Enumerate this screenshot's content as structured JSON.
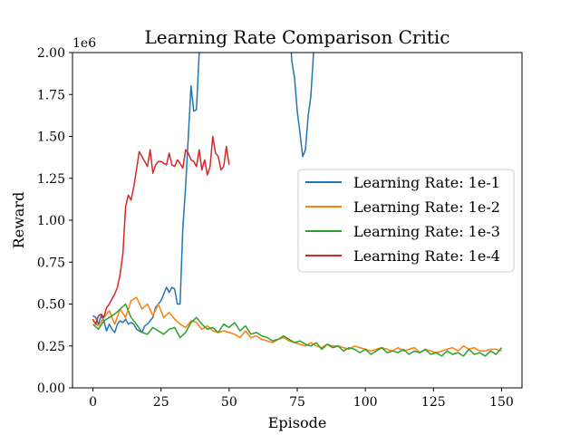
{
  "chart_data": {
    "type": "line",
    "title": "Learning Rate Comparison Critic",
    "xlabel": "Episode",
    "ylabel": "Reward",
    "y_offset_label": "1e6",
    "xlim": [
      -7.5,
      157.5
    ],
    "ylim": [
      0,
      2000000
    ],
    "xticks": [
      0,
      25,
      50,
      75,
      100,
      125,
      150
    ],
    "xtick_labels": [
      "0",
      "25",
      "50",
      "75",
      "100",
      "125",
      "150"
    ],
    "yticks": [
      0,
      250000,
      500000,
      750000,
      1000000,
      1250000,
      1500000,
      1750000,
      2000000
    ],
    "ytick_labels": [
      "0.00",
      "0.25",
      "0.50",
      "0.75",
      "1.00",
      "1.25",
      "1.50",
      "1.75",
      "2.00"
    ],
    "grid": false,
    "legend_position": "center-right",
    "series": [
      {
        "name": "Learning Rate: 1e-1",
        "color": "#1f77b4",
        "x": [
          0,
          1,
          2,
          3,
          4,
          5,
          6,
          7,
          8,
          9,
          10,
          11,
          12,
          13,
          14,
          15,
          16,
          17,
          18,
          19,
          20,
          21,
          22,
          23,
          24,
          25,
          26,
          27,
          28,
          29,
          30,
          31,
          32,
          33,
          34,
          35,
          36,
          37,
          38,
          39,
          40,
          72,
          73,
          74,
          75,
          76,
          77,
          78,
          79,
          80,
          81,
          82
        ],
        "y": [
          430000,
          420000,
          380000,
          430000,
          400000,
          340000,
          380000,
          350000,
          330000,
          380000,
          400000,
          390000,
          410000,
          380000,
          390000,
          380000,
          350000,
          340000,
          330000,
          370000,
          380000,
          400000,
          420000,
          480000,
          500000,
          520000,
          560000,
          600000,
          570000,
          600000,
          590000,
          500000,
          500000,
          950000,
          1200000,
          1500000,
          1800000,
          1650000,
          1660000,
          2000000,
          2200000,
          2200000,
          1950000,
          1850000,
          1650000,
          1520000,
          1380000,
          1420000,
          1620000,
          1740000,
          2000000,
          2200000
        ]
      },
      {
        "name": "Learning Rate: 1e-2",
        "color": "#ff7f0e",
        "x": [
          0,
          2,
          4,
          6,
          8,
          10,
          12,
          14,
          16,
          18,
          20,
          22,
          24,
          26,
          28,
          30,
          32,
          34,
          36,
          38,
          40,
          42,
          44,
          46,
          48,
          50,
          52,
          54,
          56,
          58,
          60,
          62,
          64,
          66,
          68,
          70,
          72,
          74,
          76,
          78,
          80,
          82,
          84,
          86,
          88,
          90,
          92,
          94,
          96,
          98,
          100,
          102,
          104,
          106,
          108,
          110,
          112,
          114,
          116,
          118,
          120,
          122,
          124,
          126,
          128,
          130,
          132,
          134,
          136,
          138,
          140,
          142,
          144,
          146,
          148,
          150
        ],
        "y": [
          400000,
          370000,
          420000,
          460000,
          380000,
          470000,
          420000,
          520000,
          540000,
          470000,
          500000,
          430000,
          500000,
          420000,
          450000,
          410000,
          380000,
          360000,
          400000,
          390000,
          350000,
          370000,
          340000,
          330000,
          340000,
          330000,
          320000,
          300000,
          340000,
          300000,
          310000,
          290000,
          280000,
          270000,
          290000,
          300000,
          280000,
          270000,
          260000,
          250000,
          270000,
          250000,
          240000,
          260000,
          250000,
          250000,
          240000,
          230000,
          250000,
          240000,
          230000,
          220000,
          230000,
          240000,
          230000,
          220000,
          240000,
          220000,
          230000,
          240000,
          210000,
          230000,
          220000,
          210000,
          220000,
          230000,
          240000,
          220000,
          250000,
          230000,
          240000,
          220000,
          220000,
          230000,
          230000,
          220000
        ]
      },
      {
        "name": "Learning Rate: 1e-3",
        "color": "#2ca02c",
        "x": [
          0,
          2,
          4,
          6,
          8,
          10,
          12,
          14,
          16,
          18,
          20,
          22,
          24,
          26,
          28,
          30,
          32,
          34,
          36,
          38,
          40,
          42,
          44,
          46,
          48,
          50,
          52,
          54,
          56,
          58,
          60,
          62,
          64,
          66,
          68,
          70,
          72,
          74,
          76,
          78,
          80,
          82,
          84,
          86,
          88,
          90,
          92,
          94,
          96,
          98,
          100,
          102,
          104,
          106,
          108,
          110,
          112,
          114,
          116,
          118,
          120,
          122,
          124,
          126,
          128,
          130,
          132,
          134,
          136,
          138,
          140,
          142,
          144,
          146,
          148,
          150
        ],
        "y": [
          380000,
          350000,
          400000,
          420000,
          440000,
          470000,
          500000,
          420000,
          380000,
          330000,
          320000,
          360000,
          340000,
          320000,
          350000,
          360000,
          300000,
          330000,
          390000,
          420000,
          380000,
          350000,
          360000,
          330000,
          380000,
          360000,
          390000,
          340000,
          370000,
          320000,
          330000,
          310000,
          300000,
          280000,
          290000,
          310000,
          290000,
          270000,
          280000,
          260000,
          250000,
          270000,
          230000,
          260000,
          240000,
          250000,
          220000,
          240000,
          230000,
          210000,
          230000,
          200000,
          220000,
          240000,
          210000,
          220000,
          210000,
          230000,
          200000,
          220000,
          210000,
          230000,
          200000,
          210000,
          190000,
          220000,
          200000,
          210000,
          190000,
          230000,
          200000,
          210000,
          190000,
          220000,
          200000,
          240000
        ]
      },
      {
        "name": "Learning Rate: 1e-4",
        "color": "#d62728",
        "x": [
          0,
          1,
          2,
          3,
          4,
          5,
          6,
          7,
          8,
          9,
          10,
          11,
          12,
          13,
          14,
          15,
          16,
          17,
          18,
          19,
          20,
          21,
          22,
          23,
          24,
          25,
          26,
          27,
          28,
          29,
          30,
          31,
          32,
          33,
          34,
          35,
          36,
          37,
          38,
          39,
          40,
          41,
          42,
          43,
          44,
          45,
          46,
          47,
          48,
          49,
          50
        ],
        "y": [
          410000,
          380000,
          430000,
          440000,
          420000,
          480000,
          500000,
          530000,
          560000,
          600000,
          680000,
          800000,
          1080000,
          1150000,
          1120000,
          1200000,
          1300000,
          1410000,
          1380000,
          1350000,
          1320000,
          1420000,
          1280000,
          1330000,
          1350000,
          1350000,
          1340000,
          1330000,
          1400000,
          1330000,
          1320000,
          1360000,
          1340000,
          1310000,
          1420000,
          1400000,
          1360000,
          1350000,
          1320000,
          1420000,
          1300000,
          1360000,
          1270000,
          1320000,
          1500000,
          1400000,
          1380000,
          1300000,
          1320000,
          1440000,
          1330000
        ]
      }
    ]
  }
}
